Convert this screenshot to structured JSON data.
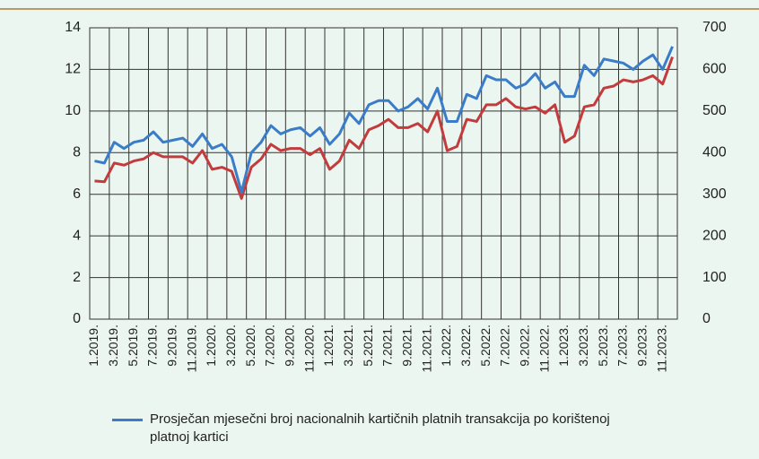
{
  "chart_data": {
    "type": "line",
    "categories": [
      "1.2019.",
      null,
      "3.2019.",
      null,
      "5.2019.",
      null,
      "7.2019.",
      null,
      "9.2019.",
      null,
      "11.2019.",
      null,
      "1.2020.",
      null,
      "3.2020.",
      null,
      "5.2020.",
      null,
      "7.2020.",
      null,
      "9.2020.",
      null,
      "11.2020.",
      null,
      "1.2021.",
      null,
      "3.2021.",
      null,
      "5.2021.",
      null,
      "7.2021.",
      null,
      "9.2021.",
      null,
      "11.2021.",
      null,
      "1.2022.",
      null,
      "3.2022.",
      null,
      "5.2022.",
      null,
      "7.2022.",
      null,
      "9.2022.",
      null,
      "11.2022.",
      null,
      "1.2023.",
      null,
      "3.2023.",
      null,
      "5.2023.",
      null,
      "7.2023.",
      null,
      "9.2023.",
      null,
      "11.2023.",
      null
    ],
    "series": [
      {
        "name": "Prosječan mjesečni broj nacionalnih kartičnih platnih transakcija po korištenoj platnoj kartici",
        "color": "#3b7cc9",
        "axis": "y",
        "values": [
          7.6,
          7.5,
          8.5,
          8.2,
          8.5,
          8.6,
          9.0,
          8.5,
          8.6,
          8.7,
          8.3,
          8.9,
          8.2,
          8.4,
          7.8,
          6.1,
          8.0,
          8.5,
          9.3,
          8.9,
          9.1,
          9.2,
          8.8,
          9.2,
          8.4,
          8.9,
          9.9,
          9.4,
          10.3,
          10.5,
          10.5,
          10.0,
          10.2,
          10.6,
          10.1,
          11.1,
          9.5,
          9.5,
          10.8,
          10.6,
          11.7,
          11.5,
          11.5,
          11.1,
          11.3,
          11.8,
          11.1,
          11.4,
          10.7,
          10.7,
          12.2,
          11.7,
          12.5,
          12.4,
          12.3,
          12.0,
          12.4,
          12.7,
          12.0,
          13.1
        ]
      },
      {
        "color": "#c23b3d",
        "axis": "y2",
        "values": [
          332,
          330,
          375,
          370,
          380,
          385,
          400,
          390,
          390,
          390,
          375,
          405,
          360,
          365,
          355,
          290,
          365,
          385,
          420,
          405,
          410,
          410,
          395,
          410,
          360,
          380,
          430,
          410,
          455,
          465,
          480,
          460,
          460,
          470,
          450,
          500,
          405,
          415,
          480,
          475,
          515,
          515,
          530,
          510,
          505,
          510,
          495,
          515,
          425,
          440,
          510,
          515,
          555,
          560,
          575,
          570,
          575,
          585,
          565,
          630
        ]
      }
    ],
    "ylim": [
      0,
      14
    ],
    "yticks": [
      0,
      2,
      4,
      6,
      8,
      10,
      12,
      14
    ],
    "y2lim": [
      0,
      700
    ],
    "y2ticks": [
      0,
      100,
      200,
      300,
      400,
      500,
      600,
      700
    ],
    "grid": true
  }
}
